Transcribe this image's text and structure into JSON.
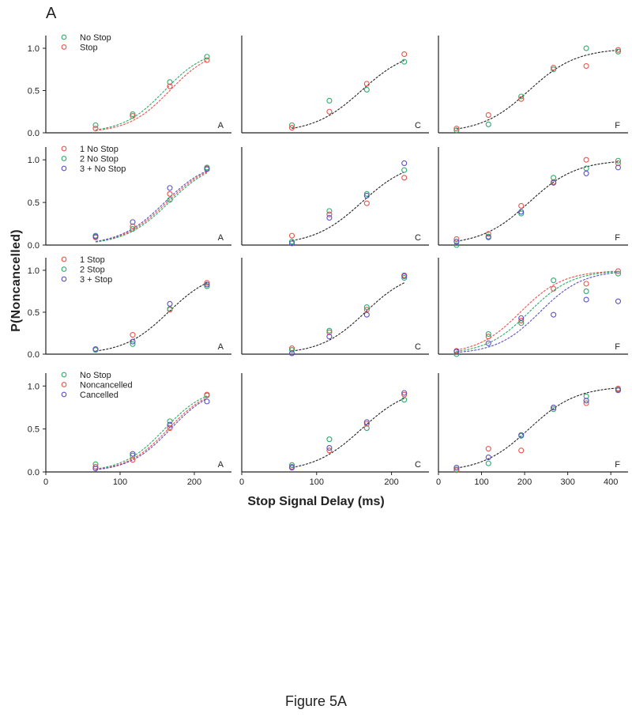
{
  "figure": {
    "panel_letter": "A",
    "y_label": "P(Noncancelled)",
    "x_label": "Stop Signal Delay (ms)",
    "caption": "Figure 5A"
  },
  "colors": {
    "red": "#e8534a",
    "green": "#2bab6c",
    "blue": "#5b4fc4",
    "black": "#222222"
  },
  "chart_data": [
    {
      "type": "scatter",
      "row": 0,
      "col": 0,
      "label": "A",
      "xlim": [
        0,
        250
      ],
      "ylim": [
        0,
        1.15
      ],
      "xticks": [],
      "yticks": [
        0,
        0.5,
        1
      ],
      "yticklabels": [
        "0.0",
        "0.5",
        "1.0"
      ],
      "legend": [
        {
          "name": "No Stop",
          "color": "green"
        },
        {
          "name": "Stop",
          "color": "red"
        }
      ],
      "series": [
        {
          "color": "green",
          "x": [
            67,
            117,
            167,
            217
          ],
          "y": [
            0.09,
            0.22,
            0.6,
            0.9
          ]
        },
        {
          "color": "red",
          "x": [
            67,
            117,
            167,
            217
          ],
          "y": [
            0.05,
            0.2,
            0.55,
            0.86
          ]
        }
      ],
      "fits": [
        {
          "color": "green",
          "mid": 160,
          "scale": 28
        },
        {
          "color": "red",
          "mid": 167,
          "scale": 28
        }
      ]
    },
    {
      "type": "scatter",
      "row": 0,
      "col": 1,
      "label": "C",
      "xlim": [
        0,
        250
      ],
      "ylim": [
        0,
        1.15
      ],
      "xticks": [],
      "yticks": [],
      "series": [
        {
          "color": "green",
          "x": [
            67,
            117,
            167,
            217
          ],
          "y": [
            0.09,
            0.38,
            0.51,
            0.84
          ]
        },
        {
          "color": "red",
          "x": [
            67,
            117,
            167,
            217
          ],
          "y": [
            0.06,
            0.25,
            0.58,
            0.93
          ]
        }
      ],
      "fits": [
        {
          "color": "black",
          "mid": 160,
          "scale": 32
        }
      ]
    },
    {
      "type": "scatter",
      "row": 0,
      "col": 2,
      "label": "F",
      "xlim": [
        0,
        440
      ],
      "ylim": [
        0,
        1.15
      ],
      "xticks": [],
      "yticks": [],
      "series": [
        {
          "color": "green",
          "x": [
            42,
            116,
            192,
            267,
            343,
            417
          ],
          "y": [
            0.03,
            0.1,
            0.43,
            0.75,
            1.0,
            0.96
          ]
        },
        {
          "color": "red",
          "x": [
            42,
            116,
            192,
            267,
            343,
            417
          ],
          "y": [
            0.05,
            0.21,
            0.4,
            0.77,
            0.79,
            0.98
          ]
        }
      ],
      "fits": [
        {
          "color": "black",
          "mid": 210,
          "scale": 55
        }
      ]
    },
    {
      "type": "scatter",
      "row": 1,
      "col": 0,
      "label": "A",
      "xlim": [
        0,
        250
      ],
      "ylim": [
        0,
        1.15
      ],
      "xticks": [],
      "yticks": [
        0,
        0.5,
        1
      ],
      "yticklabels": [
        "0.0",
        "0.5",
        "1.0"
      ],
      "legend": [
        {
          "name": "1 No Stop",
          "color": "red"
        },
        {
          "name": "2 No Stop",
          "color": "green"
        },
        {
          "name": "3 + No Stop",
          "color": "blue"
        }
      ],
      "series": [
        {
          "color": "red",
          "x": [
            67,
            117,
            167,
            217
          ],
          "y": [
            0.09,
            0.22,
            0.6,
            0.9
          ]
        },
        {
          "color": "green",
          "x": [
            67,
            117,
            167,
            217
          ],
          "y": [
            0.11,
            0.19,
            0.53,
            0.91
          ]
        },
        {
          "color": "blue",
          "x": [
            67,
            117,
            167,
            217
          ],
          "y": [
            0.1,
            0.27,
            0.67,
            0.89
          ]
        }
      ],
      "fits": [
        {
          "color": "red",
          "mid": 163,
          "scale": 30
        },
        {
          "color": "green",
          "mid": 166,
          "scale": 30
        },
        {
          "color": "blue",
          "mid": 160,
          "scale": 30
        }
      ]
    },
    {
      "type": "scatter",
      "row": 1,
      "col": 1,
      "label": "C",
      "xlim": [
        0,
        250
      ],
      "ylim": [
        0,
        1.15
      ],
      "xticks": [],
      "yticks": [],
      "series": [
        {
          "color": "red",
          "x": [
            67,
            117,
            167,
            217
          ],
          "y": [
            0.11,
            0.36,
            0.49,
            0.79
          ]
        },
        {
          "color": "green",
          "x": [
            67,
            117,
            167,
            217
          ],
          "y": [
            0.04,
            0.4,
            0.6,
            0.88
          ]
        },
        {
          "color": "blue",
          "x": [
            67,
            117,
            167,
            217
          ],
          "y": [
            0.02,
            0.32,
            0.58,
            0.96
          ]
        }
      ],
      "fits": [
        {
          "color": "black",
          "mid": 160,
          "scale": 32
        }
      ]
    },
    {
      "type": "scatter",
      "row": 1,
      "col": 2,
      "label": "F",
      "xlim": [
        0,
        440
      ],
      "ylim": [
        0,
        1.15
      ],
      "xticks": [],
      "yticks": [],
      "series": [
        {
          "color": "red",
          "x": [
            42,
            116,
            192,
            267,
            343,
            417
          ],
          "y": [
            0.07,
            0.13,
            0.46,
            0.74,
            1.0,
            0.96
          ]
        },
        {
          "color": "green",
          "x": [
            42,
            116,
            192,
            267,
            343,
            417
          ],
          "y": [
            0.0,
            0.1,
            0.37,
            0.79,
            0.9,
            0.99
          ]
        },
        {
          "color": "blue",
          "x": [
            42,
            116,
            192,
            267,
            343,
            417
          ],
          "y": [
            0.04,
            0.09,
            0.39,
            0.73,
            0.84,
            0.91
          ]
        }
      ],
      "fits": [
        {
          "color": "black",
          "mid": 210,
          "scale": 55
        }
      ]
    },
    {
      "type": "scatter",
      "row": 2,
      "col": 0,
      "label": "A",
      "xlim": [
        0,
        250
      ],
      "ylim": [
        0,
        1.15
      ],
      "xticks": [],
      "yticks": [
        0,
        0.5,
        1
      ],
      "yticklabels": [
        "0.0",
        "0.5",
        "1.0"
      ],
      "legend": [
        {
          "name": "1 Stop",
          "color": "red"
        },
        {
          "name": "2 Stop",
          "color": "green"
        },
        {
          "name": "3 + Stop",
          "color": "blue"
        }
      ],
      "series": [
        {
          "color": "red",
          "x": [
            67,
            117,
            167,
            217
          ],
          "y": [
            0.06,
            0.23,
            0.53,
            0.85
          ]
        },
        {
          "color": "green",
          "x": [
            67,
            117,
            167,
            217
          ],
          "y": [
            0.05,
            0.12,
            0.54,
            0.81
          ]
        },
        {
          "color": "blue",
          "x": [
            67,
            117,
            167,
            217
          ],
          "y": [
            0.06,
            0.15,
            0.6,
            0.83
          ]
        }
      ],
      "fits": [
        {
          "color": "black",
          "mid": 165,
          "scale": 30
        }
      ]
    },
    {
      "type": "scatter",
      "row": 2,
      "col": 1,
      "label": "C",
      "xlim": [
        0,
        250
      ],
      "ylim": [
        0,
        1.15
      ],
      "xticks": [],
      "yticks": [],
      "series": [
        {
          "color": "red",
          "x": [
            67,
            117,
            167,
            217
          ],
          "y": [
            0.07,
            0.26,
            0.53,
            0.94
          ]
        },
        {
          "color": "green",
          "x": [
            67,
            117,
            167,
            217
          ],
          "y": [
            0.05,
            0.28,
            0.56,
            0.91
          ]
        },
        {
          "color": "blue",
          "x": [
            67,
            117,
            167,
            217
          ],
          "y": [
            0.01,
            0.21,
            0.47,
            0.93
          ]
        }
      ],
      "fits": [
        {
          "color": "black",
          "mid": 165,
          "scale": 30
        }
      ]
    },
    {
      "type": "scatter",
      "row": 2,
      "col": 2,
      "label": "F",
      "xlim": [
        0,
        440
      ],
      "ylim": [
        0,
        1.15
      ],
      "xticks": [],
      "yticks": [],
      "series": [
        {
          "color": "red",
          "x": [
            42,
            116,
            192,
            267,
            343,
            417
          ],
          "y": [
            0.04,
            0.21,
            0.4,
            0.78,
            0.84,
            0.99
          ]
        },
        {
          "color": "green",
          "x": [
            42,
            116,
            192,
            267,
            343,
            417
          ],
          "y": [
            0.0,
            0.24,
            0.37,
            0.88,
            0.75,
            0.96
          ]
        },
        {
          "color": "blue",
          "x": [
            42,
            116,
            192,
            267,
            343,
            417
          ],
          "y": [
            0.03,
            0.13,
            0.43,
            0.47,
            0.65,
            0.63
          ]
        }
      ],
      "fits": [
        {
          "color": "red",
          "mid": 190,
          "scale": 50
        },
        {
          "color": "green",
          "mid": 210,
          "scale": 50
        },
        {
          "color": "blue",
          "mid": 235,
          "scale": 50
        }
      ]
    },
    {
      "type": "scatter",
      "row": 3,
      "col": 0,
      "label": "A",
      "xlim": [
        0,
        250
      ],
      "ylim": [
        0,
        1.15
      ],
      "xticks": [
        0,
        100,
        200
      ],
      "yticks": [
        0,
        0.5,
        1
      ],
      "yticklabels": [
        "0.0",
        "0.5",
        "1.0"
      ],
      "legend": [
        {
          "name": "No Stop",
          "color": "green"
        },
        {
          "name": "Noncancelled",
          "color": "red"
        },
        {
          "name": "Cancelled",
          "color": "blue"
        }
      ],
      "series": [
        {
          "color": "green",
          "x": [
            67,
            117,
            167,
            217
          ],
          "y": [
            0.09,
            0.19,
            0.59,
            0.89
          ]
        },
        {
          "color": "red",
          "x": [
            67,
            117,
            167,
            217
          ],
          "y": [
            0.06,
            0.14,
            0.51,
            0.9
          ]
        },
        {
          "color": "blue",
          "x": [
            67,
            117,
            167,
            217
          ],
          "y": [
            0.04,
            0.21,
            0.55,
            0.82
          ]
        }
      ],
      "fits": [
        {
          "color": "green",
          "mid": 160,
          "scale": 28
        },
        {
          "color": "red",
          "mid": 165,
          "scale": 28
        },
        {
          "color": "blue",
          "mid": 168,
          "scale": 28
        }
      ]
    },
    {
      "type": "scatter",
      "row": 3,
      "col": 1,
      "label": "C",
      "xlim": [
        0,
        250
      ],
      "ylim": [
        0,
        1.15
      ],
      "xticks": [
        0,
        100,
        200
      ],
      "yticks": [],
      "series": [
        {
          "color": "green",
          "x": [
            67,
            117,
            167,
            217
          ],
          "y": [
            0.08,
            0.38,
            0.51,
            0.84
          ]
        },
        {
          "color": "red",
          "x": [
            67,
            117,
            167,
            217
          ],
          "y": [
            0.06,
            0.25,
            0.56,
            0.9
          ]
        },
        {
          "color": "blue",
          "x": [
            67,
            117,
            167,
            217
          ],
          "y": [
            0.05,
            0.28,
            0.58,
            0.92
          ]
        }
      ],
      "fits": [
        {
          "color": "black",
          "mid": 160,
          "scale": 32
        }
      ]
    },
    {
      "type": "scatter",
      "row": 3,
      "col": 2,
      "label": "F",
      "xlim": [
        0,
        440
      ],
      "ylim": [
        0,
        1.15
      ],
      "xticks": [
        0,
        100,
        200,
        300,
        400
      ],
      "yticks": [],
      "series": [
        {
          "color": "green",
          "x": [
            42,
            116,
            192,
            267,
            343,
            417
          ],
          "y": [
            0.03,
            0.1,
            0.42,
            0.73,
            0.88,
            0.96
          ]
        },
        {
          "color": "red",
          "x": [
            42,
            116,
            192,
            267,
            343,
            417
          ],
          "y": [
            0.02,
            0.27,
            0.25,
            0.75,
            0.8,
            0.97
          ]
        },
        {
          "color": "blue",
          "x": [
            42,
            116,
            192,
            267,
            343,
            417
          ],
          "y": [
            0.05,
            0.17,
            0.43,
            0.75,
            0.83,
            0.95
          ]
        }
      ],
      "fits": [
        {
          "color": "black",
          "mid": 210,
          "scale": 55
        }
      ]
    }
  ]
}
